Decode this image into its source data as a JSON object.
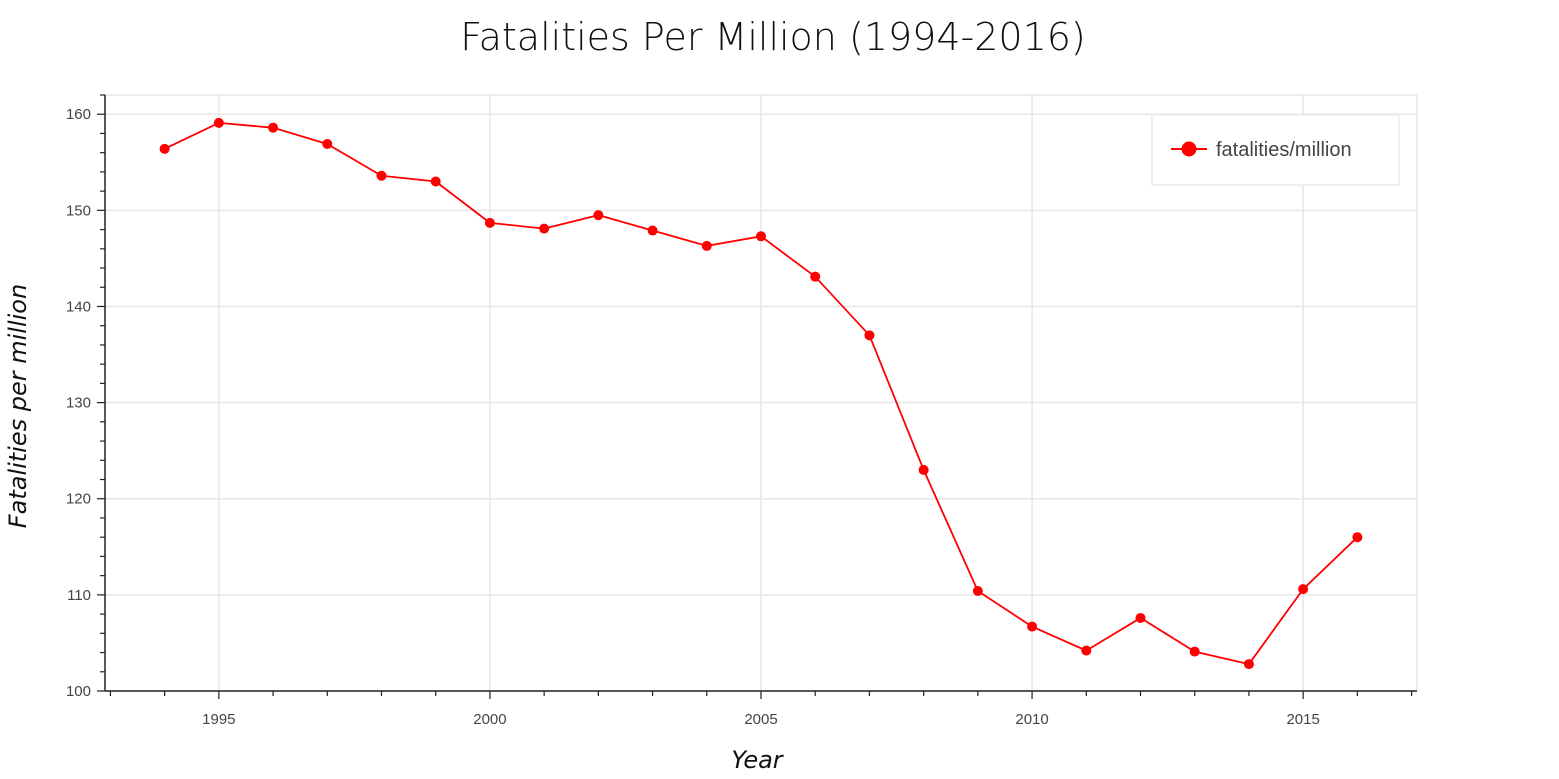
{
  "chart_data": {
    "type": "line",
    "title": "Fatalities Per Million (1994-2016)",
    "xlabel": "Year",
    "ylabel": "Fatalities per million",
    "xlim": [
      1992.9,
      2017.1
    ],
    "ylim": [
      100,
      162
    ],
    "x_ticks": [
      1995,
      2000,
      2005,
      2010,
      2015
    ],
    "y_ticks": [
      100,
      110,
      120,
      130,
      140,
      150,
      160
    ],
    "grid": true,
    "legend_position": "top-right",
    "series": [
      {
        "name": "fatalities/million",
        "color": "#ff0000",
        "x": [
          1994,
          1995,
          1996,
          1997,
          1998,
          1999,
          2000,
          2001,
          2002,
          2003,
          2004,
          2005,
          2006,
          2007,
          2008,
          2009,
          2010,
          2011,
          2012,
          2013,
          2014,
          2015,
          2016
        ],
        "values": [
          156.4,
          159.1,
          158.6,
          156.9,
          153.6,
          153.0,
          148.7,
          148.1,
          149.5,
          147.9,
          146.3,
          147.3,
          143.1,
          137.0,
          123.0,
          110.4,
          106.7,
          104.2,
          107.6,
          104.1,
          102.8,
          110.6,
          116.0
        ]
      }
    ]
  }
}
